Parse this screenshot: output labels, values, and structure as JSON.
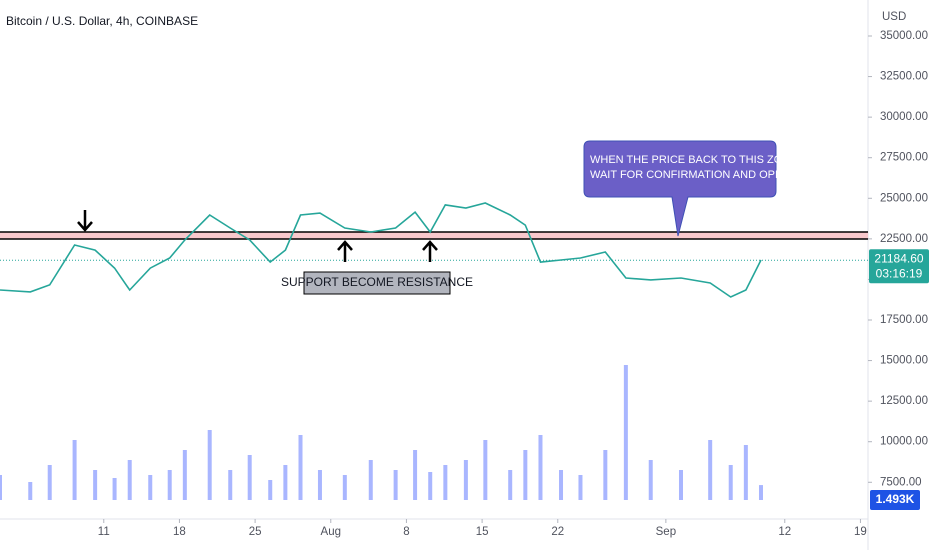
{
  "chart_data": {
    "type": "line",
    "title": "Bitcoin / U.S. Dollar, 4h, COINBASE",
    "currency": "USD",
    "x": [
      1.4,
      4.2,
      6.0,
      8.3,
      10.2,
      12.0,
      13.4,
      15.3,
      17.1,
      18.5,
      20.8,
      22.7,
      24.5,
      26.4,
      27.8,
      29.2,
      31.0,
      33.3,
      35.7,
      38.0,
      39.8,
      41.2,
      42.6,
      44.5,
      46.3,
      48.6,
      50.0,
      51.4,
      53.3,
      55.1,
      57.4,
      59.3,
      61.6,
      64.4,
      67.1,
      69.0,
      70.4,
      71.8
    ],
    "values": [
      19350,
      19230,
      19660,
      22120,
      21810,
      20700,
      19350,
      20700,
      21320,
      22430,
      23970,
      23170,
      22430,
      21070,
      21810,
      23970,
      24090,
      23170,
      22920,
      23170,
      24150,
      22920,
      24590,
      24400,
      24710,
      23970,
      23350,
      21070,
      21200,
      21320,
      21690,
      20090,
      19970,
      20090,
      19780,
      18920,
      19350,
      21200
    ],
    "color": "#26a69a",
    "volume": {
      "values": [
        2.5,
        1.8,
        3.5,
        6,
        3,
        2.2,
        4,
        2.5,
        3,
        5,
        7,
        3,
        4.5,
        2,
        3.5,
        6.5,
        3,
        2.5,
        4,
        3,
        5,
        2.8,
        3.5,
        4,
        6,
        3,
        5,
        6.5,
        3,
        2.5,
        5,
        13.5,
        4,
        3,
        6,
        3.5,
        5.5,
        1.493
      ],
      "last_label": "1.493K",
      "color": "#8c9eff"
    },
    "xlim": [
      1.4,
      81.7
    ],
    "xticks": [
      {
        "value": 11,
        "label": "11"
      },
      {
        "value": 18,
        "label": "18"
      },
      {
        "value": 25,
        "label": "25"
      },
      {
        "value": 32,
        "label": "Aug"
      },
      {
        "value": 39,
        "label": "8"
      },
      {
        "value": 46,
        "label": "15"
      },
      {
        "value": 53,
        "label": "22"
      },
      {
        "value": 63,
        "label": "Sep"
      },
      {
        "value": 74,
        "label": "12"
      },
      {
        "value": 81,
        "label": "19"
      }
    ],
    "ylim": [
      5176,
      37218
    ],
    "yticks": [
      {
        "value": 7500,
        "label": "7500.00"
      },
      {
        "value": 10000,
        "label": "10000.00"
      },
      {
        "value": 12500,
        "label": "12500.00"
      },
      {
        "value": 15000,
        "label": "15000.00"
      },
      {
        "value": 17500,
        "label": "17500.00"
      },
      {
        "value": 20000,
        "label": "20000.00"
      },
      {
        "value": 22500,
        "label": "22500.00"
      },
      {
        "value": 25000,
        "label": "25000.00"
      },
      {
        "value": 27500,
        "label": "27500.00"
      },
      {
        "value": 30000,
        "label": "30000.00"
      },
      {
        "value": 32500,
        "label": "32500.00"
      },
      {
        "value": 35000,
        "label": "35000.00"
      }
    ],
    "last_price": {
      "value": 21184.6,
      "label": "21184.60"
    },
    "countdown": "03:16:19",
    "zone": [
      22490,
      22920
    ],
    "annotations": {
      "support": "SUPPORT BECOME RESISTANCE",
      "callout": [
        "WHEN THE PRICE BACK TO THIS ZONE",
        "WAIT FOR CONFIRMATION AND OPEN SHORT"
      ]
    }
  }
}
